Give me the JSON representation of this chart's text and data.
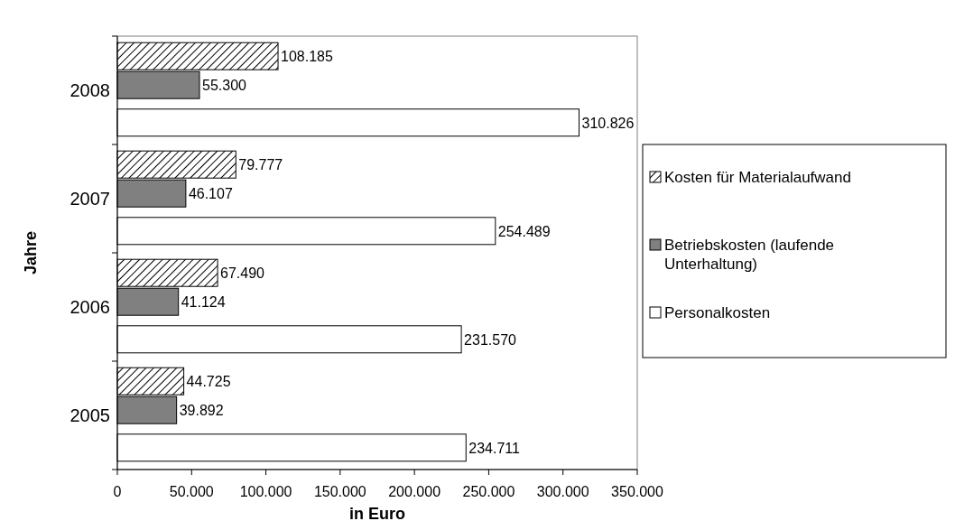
{
  "chart_data": {
    "type": "bar",
    "orientation": "horizontal",
    "categories": [
      "2008",
      "2007",
      "2006",
      "2005"
    ],
    "series": [
      {
        "name": "Kosten für Materialaufwand",
        "color": "#000000",
        "values": [
          108185,
          79777,
          67490,
          44725
        ],
        "value_labels": [
          "108.185",
          "79.777",
          "67.490",
          "44.725"
        ]
      },
      {
        "name": "Betriebskosten (laufende Unterhaltung)",
        "color": "#808080",
        "values": [
          55300,
          46107,
          41124,
          39892
        ],
        "value_labels": [
          "55.300",
          "46.107",
          "41.124",
          "39.892"
        ]
      },
      {
        "name": "Personalkosten",
        "color": "#ffffff",
        "values": [
          310826,
          254489,
          231570,
          234711
        ],
        "value_labels": [
          "310.826",
          "254.489",
          "231.570",
          "234.711"
        ]
      }
    ],
    "xlim": [
      0,
      350000
    ],
    "xticks": [
      0,
      {
        "value": 50000,
        "label": "50.000"
      },
      {
        "value": 100000,
        "label": "100.000"
      },
      {
        "value": 150000,
        "label": "150.000"
      },
      {
        "value": 200000,
        "label": "200.000"
      },
      {
        "value": 250000,
        "label": "250.000"
      },
      {
        "value": 300000,
        "label": "300.000"
      },
      {
        "value": 350000,
        "label": "350.000"
      }
    ],
    "xlabel": "in Euro",
    "ylabel": "Jahre",
    "legend": "right",
    "grid": false
  }
}
